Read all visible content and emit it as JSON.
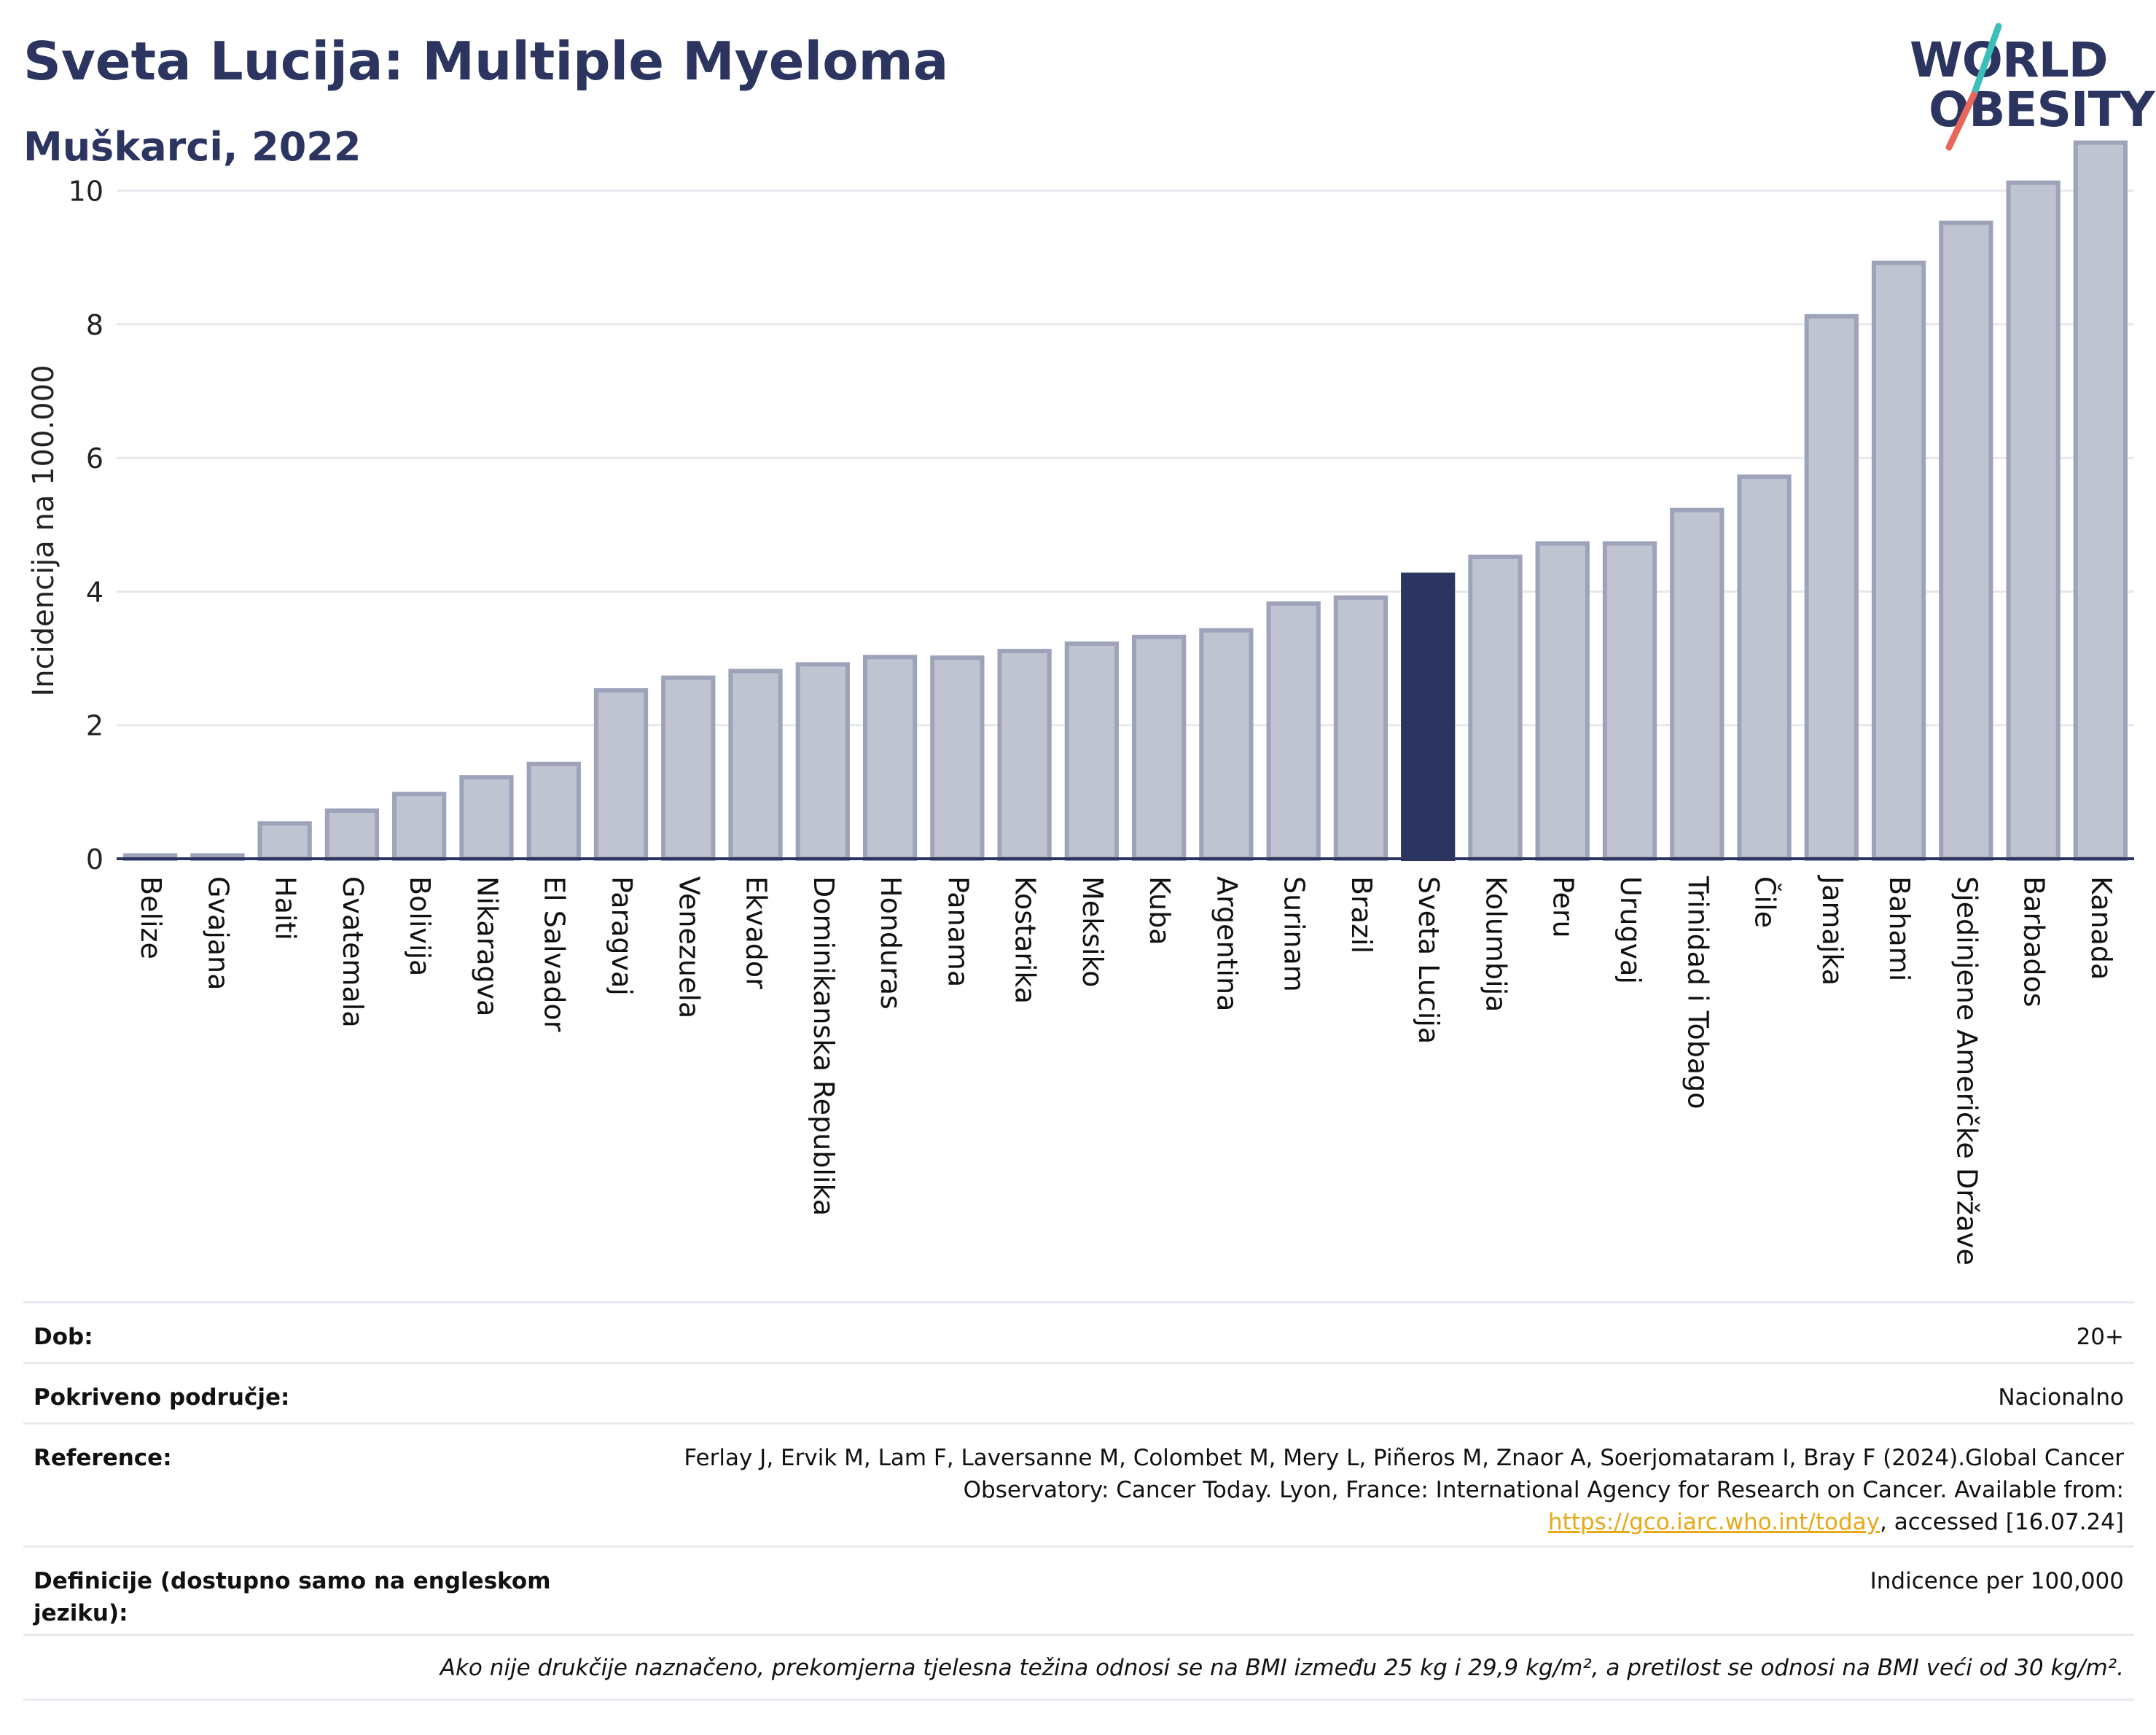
{
  "header": {
    "title": "Sveta Lucija: Multiple Myeloma",
    "subtitle": "Muškarci, 2022"
  },
  "logo": {
    "line1": "WORLD",
    "line2": "OBESITY",
    "slash_colors": [
      "#3bbfb9",
      "#e8675a"
    ]
  },
  "chart_data": {
    "type": "bar",
    "ylabel": "Incidencija na 100.000",
    "ylim": [
      0,
      11
    ],
    "yticks": [
      0,
      2,
      4,
      6,
      8,
      10
    ],
    "grid": true,
    "highlight": "Sveta Lucija",
    "colors": {
      "bar": "#c0c3d0",
      "bar_edge": "#9ea3ba",
      "highlight": "#2b3560",
      "grid": "#e6e8ee",
      "axis": "#2b3560"
    },
    "categories": [
      "Belize",
      "Gvajana",
      "Haiti",
      "Gvatemala",
      "Bolivija",
      "Nikaragva",
      "El Salvador",
      "Paragvaj",
      "Venezuela",
      "Ekvador",
      "Dominikanska Republika",
      "Honduras",
      "Panama",
      "Kostarika",
      "Meksiko",
      "Kuba",
      "Argentina",
      "Surinam",
      "Brazil",
      "Sveta Lucija",
      "Kolumbija",
      "Peru",
      "Urugvaj",
      "Trinidad i Tobago",
      "Čile",
      "Jamajka",
      "Bahami",
      "Sjedinjene Američke Države",
      "Barbados",
      "Kanada"
    ],
    "values": [
      0.05,
      0.05,
      0.53,
      0.72,
      0.97,
      1.22,
      1.42,
      2.52,
      2.71,
      2.81,
      2.91,
      3.02,
      3.01,
      3.11,
      3.22,
      3.32,
      3.42,
      3.82,
      3.91,
      4.25,
      4.52,
      4.72,
      4.72,
      5.22,
      5.72,
      8.12,
      8.92,
      9.52,
      10.12,
      10.72
    ]
  },
  "info": {
    "rows": [
      {
        "label": "Dob:",
        "value": "20+"
      },
      {
        "label": "Pokriveno područje:",
        "value": "Nacionalno"
      },
      {
        "label": "Reference:",
        "value_pre": "Ferlay J, Ervik M, Lam F, Laversanne M, Colombet M, Mery L, Piñeros M, Znaor A, Soerjomataram I, Bray F (2024).Global Cancer Observatory: Cancer Today. Lyon, France: International Agency for Research on Cancer. Available from: ",
        "link": "https://gco.iarc.who.int/today",
        "value_post": ", accessed [16.07.24]"
      },
      {
        "label": "Definicije (dostupno samo na engleskom jeziku):",
        "value": "Indicence per 100,000"
      }
    ],
    "note": "Ako nije drukčije naznačeno, prekomjerna tjelesna težina odnosi se na BMI između 25 kg i 29,9 kg/m², a pretilost se odnosi na BMI veći od 30 kg/m²."
  }
}
